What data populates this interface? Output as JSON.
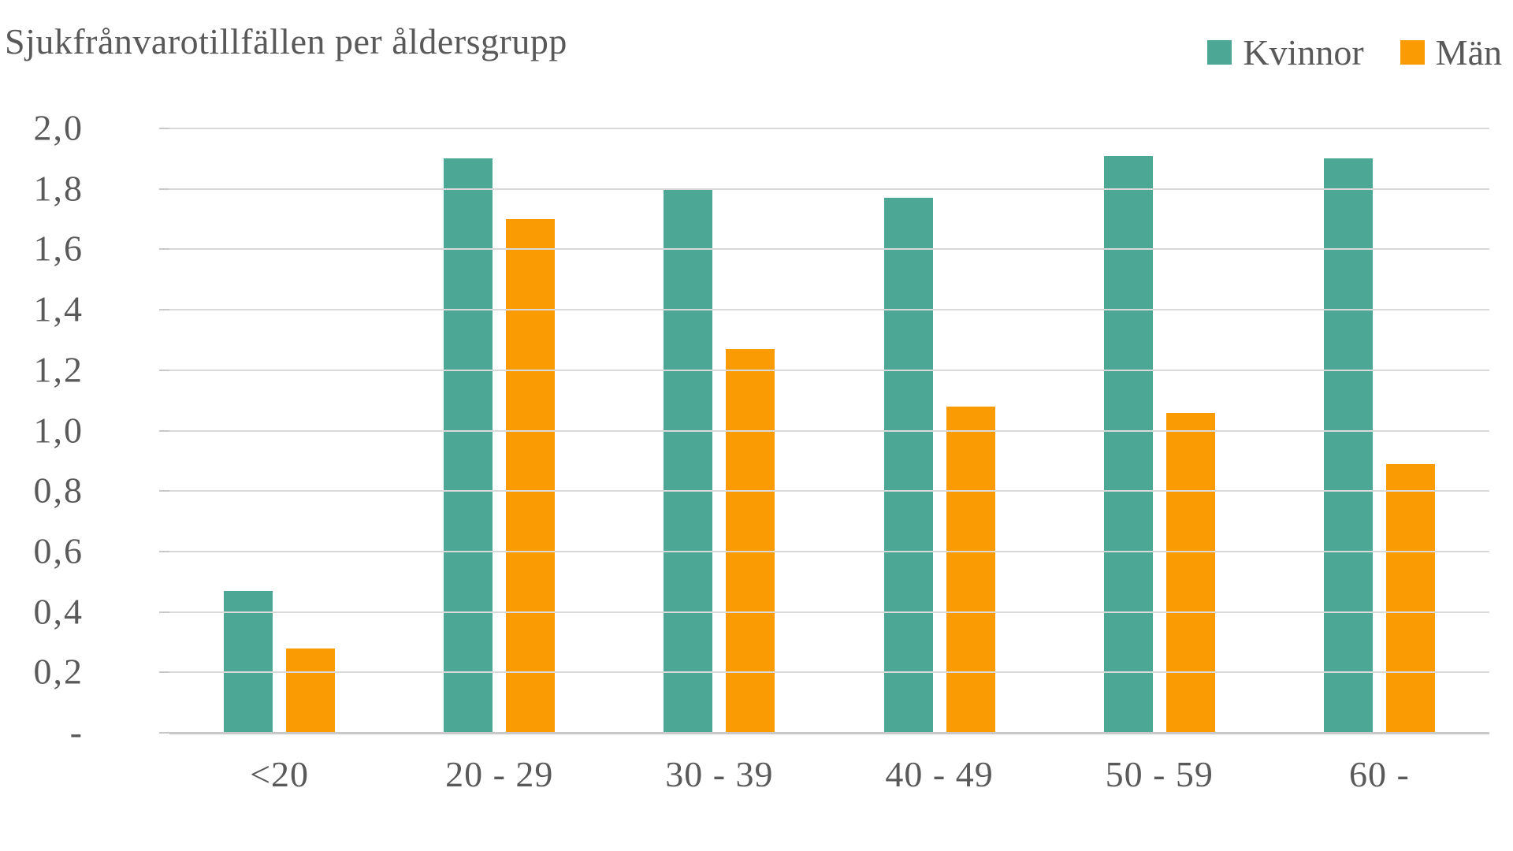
{
  "chart_data": {
    "type": "bar",
    "title": "Sjukfrånvarotillfällen per åldersgrupp",
    "categories": [
      "<20",
      "20 - 29",
      "30 - 39",
      "40 - 49",
      "50 - 59",
      "60 -"
    ],
    "series": [
      {
        "name": "Kvinnor",
        "color": "#4CA794",
        "values": [
          0.47,
          1.9,
          1.8,
          1.77,
          1.91,
          1.9
        ]
      },
      {
        "name": "Män",
        "color": "#FB9B04",
        "values": [
          0.28,
          1.7,
          1.27,
          1.08,
          1.06,
          0.89
        ]
      }
    ],
    "ylim": [
      0,
      2.0
    ],
    "ytick_step": 0.2,
    "ytick_labels": [
      "2,0",
      "1,8",
      "1,6",
      "1,4",
      "1,2",
      "1,0",
      "0,8",
      "0,6",
      "0,4",
      "0,2",
      "-"
    ],
    "xlabel": "",
    "ylabel": "",
    "grid": "horizontal",
    "legend_position": "top-right",
    "number_format": "swedish-comma"
  },
  "colors": {
    "background": "#FFFFFF",
    "text": "#595959",
    "gridline": "#D9D9D9",
    "baseline": "#C9C9C9",
    "tick": "#C9C9C9",
    "kvinnor": "#4CA794",
    "man": "#FB9B04"
  }
}
